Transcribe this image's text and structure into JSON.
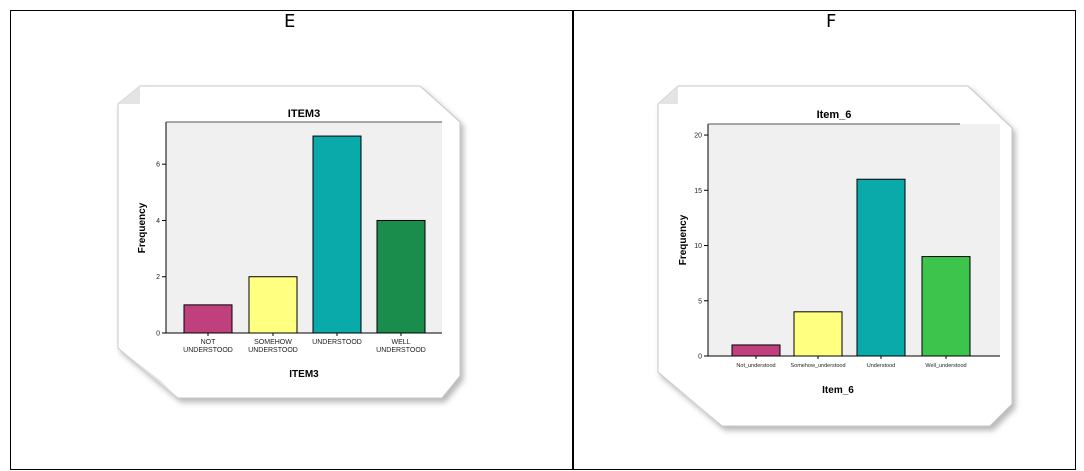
{
  "panels": [
    {
      "label": "E"
    },
    {
      "label": "F"
    }
  ],
  "chart_data": [
    {
      "type": "bar",
      "title": "ITEM3",
      "xlabel": "ITEM3",
      "ylabel": "Frequency",
      "categories": [
        "NOT UNDERSTOOD",
        "SOMEHOW UNDERSTOOD",
        "UNDERSTOOD",
        "WELL UNDERSTOOD"
      ],
      "values": [
        1,
        2,
        7,
        4
      ],
      "ylim": [
        0,
        7.5
      ],
      "yticks": [
        0,
        2,
        4,
        6
      ],
      "bar_colors": [
        "#c0407e",
        "#ffff80",
        "#0aa9aa",
        "#1a8c4c"
      ],
      "grid": false
    },
    {
      "type": "bar",
      "title": "Item_6",
      "xlabel": "Item_6",
      "ylabel": "Frequency",
      "categories": [
        "Not_understood",
        "Somehow_understood",
        "Understood",
        "Well_understood"
      ],
      "values": [
        1,
        4,
        16,
        9
      ],
      "ylim": [
        0,
        21
      ],
      "yticks": [
        0,
        5,
        10,
        15,
        20
      ],
      "bar_colors": [
        "#c0407e",
        "#ffff80",
        "#0aa9aa",
        "#3cc44c"
      ],
      "grid": false
    }
  ]
}
